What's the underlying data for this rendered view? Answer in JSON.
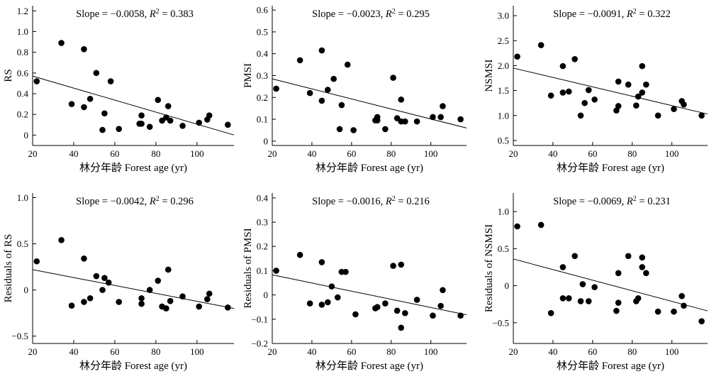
{
  "figure": {
    "slope_prefix": "Slope = ",
    "r2_symbol": "R",
    "r2_exponent": "2",
    "r2_equals": " = "
  },
  "chart_data": [
    {
      "type": "scatter",
      "ylabel": "RS",
      "xlabel": "林分年龄 Forest age (yr)",
      "xlim": [
        20,
        118
      ],
      "ylim": [
        -0.1,
        1.25
      ],
      "xticks": [
        20,
        40,
        60,
        80,
        100
      ],
      "yticks": [
        0,
        0.2,
        0.4,
        0.6,
        0.8,
        1.0,
        1.2
      ],
      "ytick_labels": [
        "0",
        "0.2",
        "0.4",
        "0.6",
        "0.8",
        "1.0",
        "1.2"
      ],
      "annotation": {
        "slope": "−0.0058",
        "r2": "0.383"
      },
      "fit": {
        "x": [
          20,
          118
        ],
        "y": [
          0.57,
          0.0016
        ]
      },
      "points": [
        {
          "x": 22,
          "y": 0.52
        },
        {
          "x": 34,
          "y": 0.89
        },
        {
          "x": 39,
          "y": 0.3
        },
        {
          "x": 45,
          "y": 0.83
        },
        {
          "x": 45,
          "y": 0.27
        },
        {
          "x": 48,
          "y": 0.35
        },
        {
          "x": 51,
          "y": 0.6
        },
        {
          "x": 54,
          "y": 0.05
        },
        {
          "x": 55,
          "y": 0.21
        },
        {
          "x": 58,
          "y": 0.52
        },
        {
          "x": 62,
          "y": 0.06
        },
        {
          "x": 72,
          "y": 0.11
        },
        {
          "x": 73,
          "y": 0.19
        },
        {
          "x": 73,
          "y": 0.11
        },
        {
          "x": 77,
          "y": 0.08
        },
        {
          "x": 81,
          "y": 0.34
        },
        {
          "x": 83,
          "y": 0.14
        },
        {
          "x": 85,
          "y": 0.17
        },
        {
          "x": 86,
          "y": 0.28
        },
        {
          "x": 87,
          "y": 0.14
        },
        {
          "x": 93,
          "y": 0.09
        },
        {
          "x": 101,
          "y": 0.12
        },
        {
          "x": 105,
          "y": 0.15
        },
        {
          "x": 106,
          "y": 0.19
        },
        {
          "x": 115,
          "y": 0.1
        }
      ]
    },
    {
      "type": "scatter",
      "ylabel": "PMSI",
      "xlabel": "林分年龄 Forest age (yr)",
      "xlim": [
        20,
        118
      ],
      "ylim": [
        -0.02,
        0.62
      ],
      "xticks": [
        20,
        40,
        60,
        80,
        100
      ],
      "yticks": [
        0,
        0.1,
        0.2,
        0.3,
        0.4,
        0.5,
        0.6
      ],
      "ytick_labels": [
        "0",
        "0.1",
        "0.2",
        "0.3",
        "0.4",
        "0.5",
        "0.6"
      ],
      "annotation": {
        "slope": "−0.0023",
        "r2": "0.295"
      },
      "fit": {
        "x": [
          20,
          118
        ],
        "y": [
          0.285,
          0.06
        ]
      },
      "points": [
        {
          "x": 22,
          "y": 0.24
        },
        {
          "x": 34,
          "y": 0.37
        },
        {
          "x": 39,
          "y": 0.22
        },
        {
          "x": 45,
          "y": 0.415
        },
        {
          "x": 45,
          "y": 0.185
        },
        {
          "x": 48,
          "y": 0.235
        },
        {
          "x": 51,
          "y": 0.285
        },
        {
          "x": 54,
          "y": 0.055
        },
        {
          "x": 55,
          "y": 0.165
        },
        {
          "x": 58,
          "y": 0.35
        },
        {
          "x": 61,
          "y": 0.05
        },
        {
          "x": 72,
          "y": 0.095
        },
        {
          "x": 73,
          "y": 0.11
        },
        {
          "x": 73,
          "y": 0.095
        },
        {
          "x": 77,
          "y": 0.055
        },
        {
          "x": 81,
          "y": 0.29
        },
        {
          "x": 83,
          "y": 0.105
        },
        {
          "x": 85,
          "y": 0.19
        },
        {
          "x": 85,
          "y": 0.09
        },
        {
          "x": 87,
          "y": 0.09
        },
        {
          "x": 93,
          "y": 0.09
        },
        {
          "x": 101,
          "y": 0.11
        },
        {
          "x": 105,
          "y": 0.11
        },
        {
          "x": 106,
          "y": 0.16
        },
        {
          "x": 115,
          "y": 0.1
        }
      ]
    },
    {
      "type": "scatter",
      "ylabel": "NSMSI",
      "xlabel": "林分年龄 Forest age (yr)",
      "xlim": [
        20,
        118
      ],
      "ylim": [
        0.4,
        3.2
      ],
      "xticks": [
        20,
        40,
        60,
        80,
        100
      ],
      "yticks": [
        0.5,
        1.0,
        1.5,
        2.0,
        2.5,
        3.0
      ],
      "ytick_labels": [
        "0.5",
        "1.0",
        "1.5",
        "2.0",
        "2.5",
        "3.0"
      ],
      "annotation": {
        "slope": "−0.0091",
        "r2": "0.322"
      },
      "fit": {
        "x": [
          20,
          118
        ],
        "y": [
          1.95,
          1.03
        ]
      },
      "points": [
        {
          "x": 22,
          "y": 2.18
        },
        {
          "x": 34,
          "y": 2.41
        },
        {
          "x": 39,
          "y": 1.4
        },
        {
          "x": 45,
          "y": 1.99
        },
        {
          "x": 45,
          "y": 1.46
        },
        {
          "x": 48,
          "y": 1.48
        },
        {
          "x": 51,
          "y": 2.13
        },
        {
          "x": 54,
          "y": 1.0
        },
        {
          "x": 56,
          "y": 1.25
        },
        {
          "x": 58,
          "y": 1.51
        },
        {
          "x": 61,
          "y": 1.32
        },
        {
          "x": 72,
          "y": 1.1
        },
        {
          "x": 73,
          "y": 1.68
        },
        {
          "x": 73,
          "y": 1.19
        },
        {
          "x": 78,
          "y": 1.62
        },
        {
          "x": 82,
          "y": 1.2
        },
        {
          "x": 83,
          "y": 1.38
        },
        {
          "x": 85,
          "y": 1.99
        },
        {
          "x": 85,
          "y": 1.46
        },
        {
          "x": 87,
          "y": 1.62
        },
        {
          "x": 93,
          "y": 1.0
        },
        {
          "x": 101,
          "y": 1.13
        },
        {
          "x": 105,
          "y": 1.29
        },
        {
          "x": 106,
          "y": 1.22
        },
        {
          "x": 115,
          "y": 1.0
        }
      ]
    },
    {
      "type": "scatter",
      "ylabel": "Residuals of RS",
      "xlabel": "林分年龄 Forest age (yr)",
      "xlim": [
        20,
        118
      ],
      "ylim": [
        -0.58,
        1.05
      ],
      "xticks": [
        20,
        40,
        60,
        80,
        100
      ],
      "yticks": [
        -0.5,
        0,
        0.5,
        1.0
      ],
      "ytick_labels": [
        "−0.5",
        "0",
        "0.5",
        "1.0"
      ],
      "annotation": {
        "slope": "−0.0042",
        "r2": "0.296"
      },
      "fit": {
        "x": [
          20,
          118
        ],
        "y": [
          0.22,
          -0.2
        ]
      },
      "points": [
        {
          "x": 22,
          "y": 0.31
        },
        {
          "x": 34,
          "y": 0.54
        },
        {
          "x": 39,
          "y": -0.17
        },
        {
          "x": 45,
          "y": 0.34
        },
        {
          "x": 45,
          "y": -0.13
        },
        {
          "x": 48,
          "y": -0.09
        },
        {
          "x": 51,
          "y": 0.15
        },
        {
          "x": 54,
          "y": 0.0
        },
        {
          "x": 55,
          "y": 0.13
        },
        {
          "x": 57,
          "y": 0.08
        },
        {
          "x": 62,
          "y": -0.13
        },
        {
          "x": 73,
          "y": -0.09
        },
        {
          "x": 73,
          "y": -0.15
        },
        {
          "x": 77,
          "y": 0.0
        },
        {
          "x": 81,
          "y": 0.1
        },
        {
          "x": 83,
          "y": -0.18
        },
        {
          "x": 85,
          "y": -0.2
        },
        {
          "x": 86,
          "y": 0.22
        },
        {
          "x": 87,
          "y": -0.12
        },
        {
          "x": 93,
          "y": -0.07
        },
        {
          "x": 101,
          "y": -0.18
        },
        {
          "x": 105,
          "y": -0.1
        },
        {
          "x": 106,
          "y": -0.04
        },
        {
          "x": 115,
          "y": -0.19
        }
      ]
    },
    {
      "type": "scatter",
      "ylabel": "Residuals of PMSI",
      "xlabel": "林分年龄 Forest age (yr)",
      "xlim": [
        20,
        118
      ],
      "ylim": [
        -0.2,
        0.42
      ],
      "xticks": [
        20,
        40,
        60,
        80,
        100
      ],
      "yticks": [
        -0.2,
        -0.1,
        0,
        0.1,
        0.2,
        0.3,
        0.4
      ],
      "ytick_labels": [
        "−0.2",
        "−0.1",
        "0",
        "0.1",
        "0.2",
        "0.3",
        "0.4"
      ],
      "annotation": {
        "slope": "−0.0016",
        "r2": "0.216"
      },
      "fit": {
        "x": [
          20,
          118
        ],
        "y": [
          0.083,
          -0.082
        ]
      },
      "points": [
        {
          "x": 22,
          "y": 0.1
        },
        {
          "x": 34,
          "y": 0.165
        },
        {
          "x": 39,
          "y": -0.035
        },
        {
          "x": 45,
          "y": 0.135
        },
        {
          "x": 45,
          "y": -0.04
        },
        {
          "x": 48,
          "y": -0.03
        },
        {
          "x": 50,
          "y": 0.035
        },
        {
          "x": 53,
          "y": -0.01
        },
        {
          "x": 55,
          "y": 0.095
        },
        {
          "x": 57,
          "y": 0.095
        },
        {
          "x": 62,
          "y": -0.08
        },
        {
          "x": 72,
          "y": -0.055
        },
        {
          "x": 73,
          "y": -0.05
        },
        {
          "x": 77,
          "y": -0.035
        },
        {
          "x": 81,
          "y": 0.12
        },
        {
          "x": 83,
          "y": -0.065
        },
        {
          "x": 85,
          "y": 0.125
        },
        {
          "x": 85,
          "y": -0.135
        },
        {
          "x": 87,
          "y": -0.075
        },
        {
          "x": 93,
          "y": -0.02
        },
        {
          "x": 101,
          "y": -0.085
        },
        {
          "x": 105,
          "y": -0.045
        },
        {
          "x": 106,
          "y": 0.02
        },
        {
          "x": 115,
          "y": -0.085
        }
      ]
    },
    {
      "type": "scatter",
      "ylabel": "Residuals of NSMSI",
      "xlabel": "林分年龄 Forest age (yr)",
      "xlim": [
        20,
        118
      ],
      "ylim": [
        -0.78,
        1.25
      ],
      "xticks": [
        20,
        40,
        60,
        80,
        100
      ],
      "yticks": [
        -0.5,
        0,
        0.5,
        1.0
      ],
      "ytick_labels": [
        "−0.5",
        "0",
        "0.5",
        "1.0"
      ],
      "annotation": {
        "slope": "−0.0069",
        "r2": "0.231"
      },
      "fit": {
        "x": [
          20,
          118
        ],
        "y": [
          0.36,
          -0.34
        ]
      },
      "points": [
        {
          "x": 22,
          "y": 0.8
        },
        {
          "x": 34,
          "y": 0.82
        },
        {
          "x": 39,
          "y": -0.37
        },
        {
          "x": 45,
          "y": 0.25
        },
        {
          "x": 45,
          "y": -0.17
        },
        {
          "x": 48,
          "y": -0.17
        },
        {
          "x": 51,
          "y": 0.4
        },
        {
          "x": 54,
          "y": -0.21
        },
        {
          "x": 55,
          "y": 0.02
        },
        {
          "x": 58,
          "y": -0.21
        },
        {
          "x": 61,
          "y": -0.02
        },
        {
          "x": 72,
          "y": -0.34
        },
        {
          "x": 73,
          "y": 0.17
        },
        {
          "x": 73,
          "y": -0.23
        },
        {
          "x": 78,
          "y": 0.4
        },
        {
          "x": 82,
          "y": -0.21
        },
        {
          "x": 83,
          "y": -0.17
        },
        {
          "x": 85,
          "y": 0.38
        },
        {
          "x": 85,
          "y": 0.25
        },
        {
          "x": 87,
          "y": 0.17
        },
        {
          "x": 93,
          "y": -0.35
        },
        {
          "x": 101,
          "y": -0.35
        },
        {
          "x": 105,
          "y": -0.14
        },
        {
          "x": 106,
          "y": -0.27
        },
        {
          "x": 115,
          "y": -0.48
        }
      ]
    }
  ]
}
